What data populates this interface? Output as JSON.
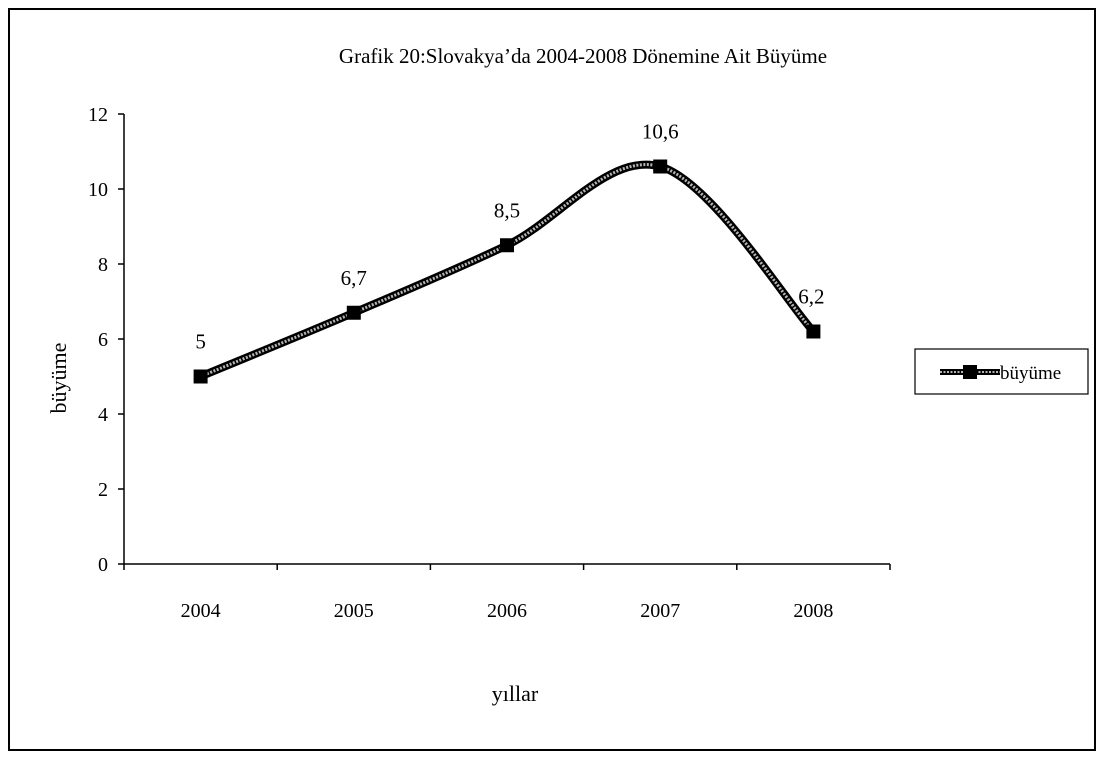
{
  "chart_data": {
    "type": "line",
    "title": "Grafik 20:Slovakya’da 2004-2008 Dönemine Ait Büyüme",
    "xlabel": "yıllar",
    "ylabel": "büyüme",
    "categories": [
      "2004",
      "2005",
      "2006",
      "2007",
      "2008"
    ],
    "series": [
      {
        "name": "büyüme",
        "values": [
          5,
          6.7,
          8.5,
          10.6,
          6.2
        ],
        "labels": [
          "5",
          "6,7",
          "8,5",
          "10,6",
          "6,2"
        ]
      }
    ],
    "ylim": [
      0,
      12
    ],
    "yticks": [
      "0",
      "2",
      "4",
      "6",
      "8",
      "10",
      "12"
    ],
    "grid": false,
    "smooth": true,
    "marker": "square",
    "legend_position": "right"
  }
}
